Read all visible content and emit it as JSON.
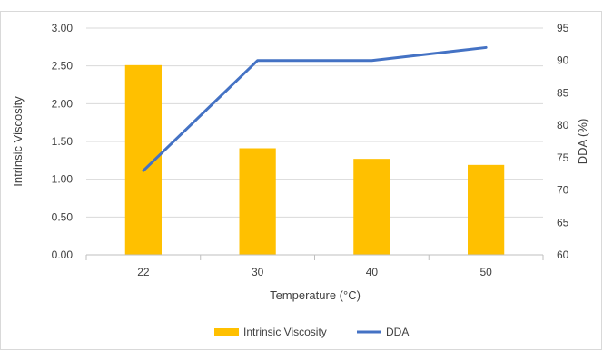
{
  "chart_data": {
    "type": "bar+line",
    "categories": [
      "22",
      "30",
      "40",
      "50"
    ],
    "xlabel": "Temperature (°C)",
    "ylabel_left": "Intrinsic Viscosity",
    "ylabel_right": "DDA (%)",
    "ylim_left": [
      0,
      3
    ],
    "ylim_right": [
      60,
      95
    ],
    "yticks_left": [
      "0.00",
      "0.50",
      "1.00",
      "1.50",
      "2.00",
      "2.50",
      "3.00"
    ],
    "yticks_right": [
      "60",
      "65",
      "70",
      "75",
      "80",
      "85",
      "90",
      "95"
    ],
    "grid": true,
    "legend_position": "bottom",
    "series": [
      {
        "name": "Intrinsic Viscosity",
        "type": "bar",
        "axis": "left",
        "color": "#ffc000",
        "values": [
          2.51,
          1.41,
          1.27,
          1.19
        ]
      },
      {
        "name": "DDA",
        "type": "line",
        "axis": "right",
        "color": "#4472c4",
        "values": [
          73,
          90,
          90,
          92
        ]
      }
    ]
  }
}
